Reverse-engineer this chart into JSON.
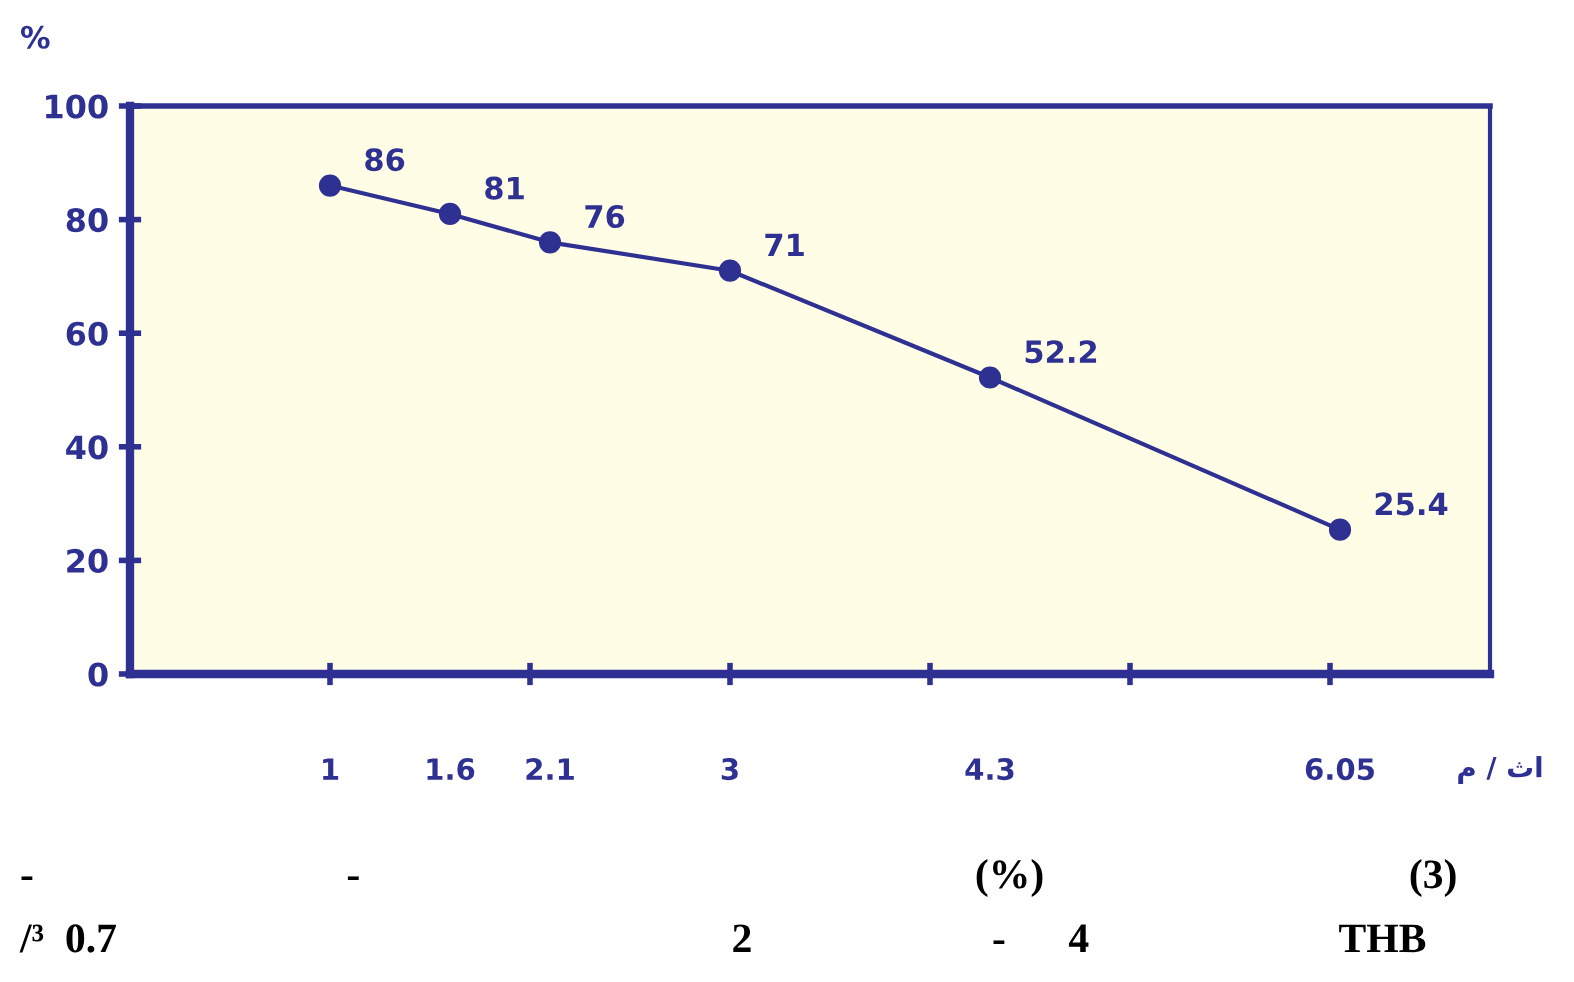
{
  "chart_data": {
    "type": "line",
    "ylabel": "%",
    "xlabel": "م / ثا",
    "x": [
      1,
      1.6,
      2.1,
      3,
      4.3,
      6.05
    ],
    "series": [
      {
        "color": "#2e3192",
        "values": [
          86,
          81,
          76,
          71,
          52.2,
          25.4
        ]
      }
    ],
    "data_labels": true,
    "marker": "circle",
    "line_style": "solid",
    "grid": false,
    "legend": false,
    "xlim": [
      0,
      6.8
    ],
    "xticks": [
      {
        "value": 1,
        "label": null
      },
      {
        "value": 2,
        "label": null
      },
      {
        "value": 3,
        "label": null
      },
      {
        "value": 4,
        "label": null
      },
      {
        "value": 5,
        "label": null
      },
      {
        "value": 6,
        "label": null
      },
      {
        "value": 1,
        "label": "1"
      },
      {
        "value": 1.6,
        "label": "1.6"
      },
      {
        "value": 2.1,
        "label": "2.1"
      },
      {
        "value": 3,
        "label": "3"
      },
      {
        "value": 4.3,
        "label": "4.3"
      },
      {
        "value": 6.05,
        "label": "6.05"
      }
    ],
    "ylim": [
      0,
      100
    ],
    "yticks": [
      0,
      20,
      40,
      60,
      80,
      100
    ],
    "annotations": [
      "-                              -                                                           (%)                                   (3)",
      "/³  0.7                                                           2                       -      4                        THB"
    ]
  }
}
